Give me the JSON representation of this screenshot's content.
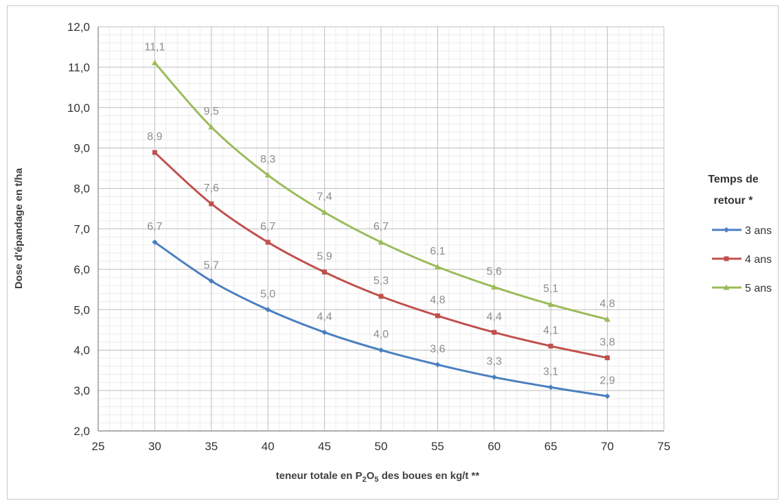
{
  "chart_data": {
    "type": "line",
    "title": "",
    "xlabel": "teneur totale en P₂O₅ des boues en kg/t **",
    "ylabel": "Dose d'épandage en t/ha",
    "xlim": [
      25,
      75
    ],
    "ylim": [
      2.0,
      12.0
    ],
    "x_ticks": [
      "25",
      "30",
      "35",
      "40",
      "45",
      "50",
      "55",
      "60",
      "65",
      "70",
      "75"
    ],
    "y_ticks": [
      "2,0",
      "3,0",
      "4,0",
      "5,0",
      "6,0",
      "7,0",
      "8,0",
      "9,0",
      "10,0",
      "11,0",
      "12,0"
    ],
    "x": [
      30,
      35,
      40,
      45,
      50,
      55,
      60,
      65,
      70
    ],
    "legend_title": [
      "Temps de",
      "retour *"
    ],
    "legend_position": "right",
    "grid": true,
    "series": [
      {
        "name": "3 ans",
        "color": "#4a7fc1",
        "marker": "diamond",
        "values": [
          6.67,
          5.71,
          5.0,
          4.44,
          4.0,
          3.64,
          3.33,
          3.08,
          2.86
        ],
        "labels": [
          "6,7",
          "5,7",
          "5,0",
          "4,4",
          "4,0",
          "3,6",
          "3,3",
          "3,1",
          "2,9"
        ]
      },
      {
        "name": "4 ans",
        "color": "#c0504d",
        "marker": "square",
        "values": [
          8.89,
          7.62,
          6.67,
          5.93,
          5.33,
          4.85,
          4.44,
          4.1,
          3.81
        ],
        "labels": [
          "8,9",
          "7,6",
          "6,7",
          "5,9",
          "5,3",
          "4,8",
          "4,4",
          "4,1",
          "3,8"
        ]
      },
      {
        "name": "5 ans",
        "color": "#9bbb59",
        "marker": "triangle",
        "values": [
          11.11,
          9.52,
          8.33,
          7.41,
          6.67,
          6.06,
          5.56,
          5.13,
          4.76
        ],
        "labels": [
          "11,1",
          "9,5",
          "8,3",
          "7,4",
          "6,7",
          "6,1",
          "5,6",
          "5,1",
          "4,8"
        ]
      }
    ]
  }
}
